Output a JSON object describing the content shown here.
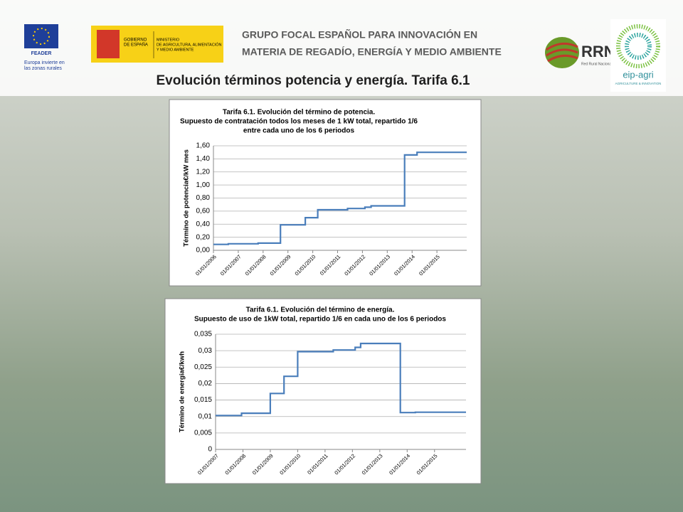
{
  "logos": {
    "feader": "FEADER",
    "feader_caption": [
      "Europa invierte en",
      "las zonas rurales"
    ],
    "gobierno": [
      "GOBIERNO",
      "DE ESPAÑA"
    ],
    "ministerio": [
      "MINISTERIO",
      "DE AGRICULTURA, ALIMENTACIÓN",
      "Y MEDIO AMBIENTE"
    ],
    "rrn": "RRN",
    "rrn_caption": "Red Rural Nacional",
    "eip": "eip-agri",
    "eip_caption": "AGRICULTURE & INNOVATION"
  },
  "header": {
    "org": [
      "GRUPO FOCAL ESPAÑOL PARA INNOVACIÓN EN",
      "MATERIA DE REGADÍO, ENERGÍA Y MEDIO AMBIENTE"
    ],
    "title": "Evolución términos potencia y energía. Tarifa 6.1"
  },
  "chart_data": [
    {
      "type": "line",
      "title": [
        "Tarifa 6.1. Evolución del término de potencia.",
        "Supuesto de contratación todos los meses de 1 kW total, repartido 1/6",
        "entre cada uno de los 6 periodos"
      ],
      "y_label": "Término de potencia€/kW mes",
      "color": "#4a7ebb",
      "x": [
        2006.0,
        2006.6,
        2006.6,
        2007.8,
        2007.8,
        2008.7,
        2008.7,
        2009.7,
        2009.7,
        2010.2,
        2010.2,
        2011.4,
        2011.4,
        2012.1,
        2012.1,
        2012.35,
        2012.35,
        2013.7,
        2013.7,
        2014.2,
        2014.2,
        2016.2
      ],
      "values": [
        0.09,
        0.09,
        0.1,
        0.1,
        0.11,
        0.11,
        0.39,
        0.39,
        0.5,
        0.5,
        0.62,
        0.62,
        0.64,
        0.64,
        0.66,
        0.66,
        0.68,
        0.68,
        1.46,
        1.46,
        1.5,
        1.5
      ],
      "xlim": [
        2006.0,
        2016.2
      ],
      "xticks": [
        {
          "value": 2006,
          "label": "01/01/2006"
        },
        {
          "value": 2007,
          "label": "01/01/2007"
        },
        {
          "value": 2008,
          "label": "01/01/2008"
        },
        {
          "value": 2009,
          "label": "01/01/2009"
        },
        {
          "value": 2010,
          "label": "01/01/2010"
        },
        {
          "value": 2011,
          "label": "01/01/2011"
        },
        {
          "value": 2012,
          "label": "01/01/2012"
        },
        {
          "value": 2013,
          "label": "01/01/2013"
        },
        {
          "value": 2014,
          "label": "01/01/2014"
        },
        {
          "value": 2015,
          "label": "01/01/2015"
        }
      ],
      "ylim": [
        0,
        1.6
      ],
      "yticks": [
        {
          "value": 0,
          "label": "0,00"
        },
        {
          "value": 0.2,
          "label": "0,20"
        },
        {
          "value": 0.4,
          "label": "0,40"
        },
        {
          "value": 0.6,
          "label": "0,60"
        },
        {
          "value": 0.8,
          "label": "0,80"
        },
        {
          "value": 1.0,
          "label": "1,00"
        },
        {
          "value": 1.2,
          "label": "1,20"
        },
        {
          "value": 1.4,
          "label": "1,40"
        },
        {
          "value": 1.6,
          "label": "1,60"
        }
      ],
      "grid": true
    },
    {
      "type": "line",
      "title": [
        "Tarifa 6.1. Evolución del término de energía.",
        "Supuesto de uso de 1kW total, repartido 1/6 en cada uno de los 6 periodos"
      ],
      "y_label": "Término de energía€/kwh",
      "color": "#4a7ebb",
      "x": [
        2007.0,
        2007.95,
        2007.95,
        2009.0,
        2009.0,
        2009.5,
        2009.5,
        2010.0,
        2010.0,
        2011.3,
        2011.3,
        2012.1,
        2012.1,
        2012.3,
        2012.3,
        2013.75,
        2013.75,
        2014.3,
        2014.3,
        2016.15
      ],
      "values": [
        0.0103,
        0.0103,
        0.011,
        0.011,
        0.017,
        0.017,
        0.0222,
        0.0222,
        0.0297,
        0.0297,
        0.0302,
        0.0302,
        0.031,
        0.031,
        0.0322,
        0.0322,
        0.0112,
        0.0112,
        0.0113,
        0.0113
      ],
      "xlim": [
        2007.0,
        2016.15
      ],
      "xticks": [
        {
          "value": 2007,
          "label": "01/01/2007"
        },
        {
          "value": 2008,
          "label": "01/01/2008"
        },
        {
          "value": 2009,
          "label": "01/01/2009"
        },
        {
          "value": 2010,
          "label": "01/01/2010"
        },
        {
          "value": 2011,
          "label": "01/01/2011"
        },
        {
          "value": 2012,
          "label": "01/01/2012"
        },
        {
          "value": 2013,
          "label": "01/01/2013"
        },
        {
          "value": 2014,
          "label": "01/01/2014"
        },
        {
          "value": 2015,
          "label": "01/01/2015"
        }
      ],
      "ylim": [
        0,
        0.035
      ],
      "yticks": [
        0,
        {
          "value": 0.005,
          "label": "0,005"
        },
        {
          "value": 0.01,
          "label": "0,01"
        },
        {
          "value": 0.015,
          "label": "0,015"
        },
        {
          "value": 0.02,
          "label": "0,02"
        },
        {
          "value": 0.025,
          "label": "0,025"
        },
        {
          "value": 0.03,
          "label": "0,03"
        },
        {
          "value": 0.035,
          "label": "0,035"
        }
      ],
      "grid": true
    }
  ]
}
